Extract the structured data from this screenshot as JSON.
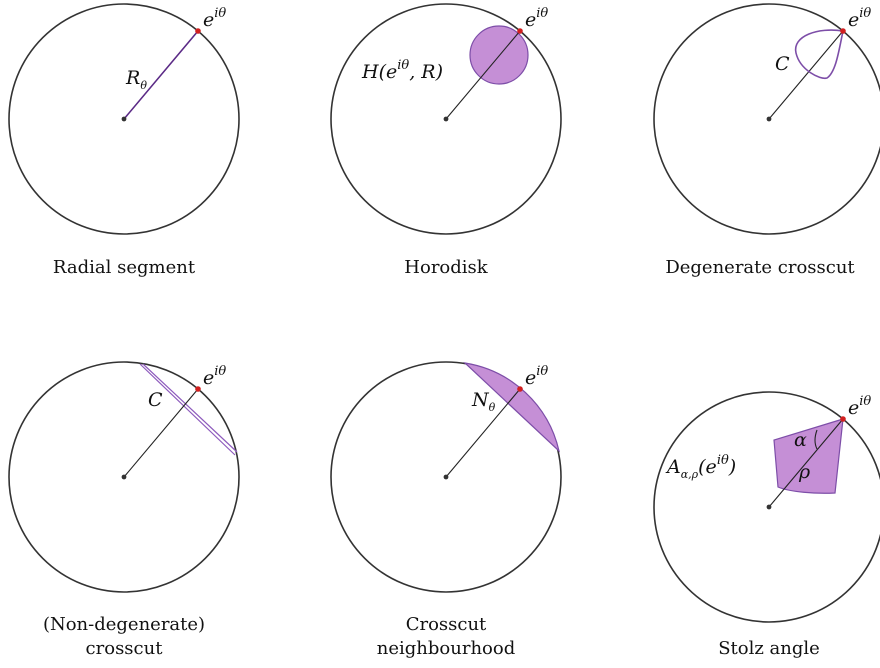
{
  "panels": [
    {
      "id": "radial-segment",
      "caption": [
        "Radial segment"
      ],
      "boundary_point": {
        "base": "e",
        "sup": "iθ"
      },
      "region_label": {
        "base": "R",
        "sub": "θ"
      }
    },
    {
      "id": "horodisk",
      "caption": [
        "Horodisk"
      ],
      "boundary_point": {
        "base": "e",
        "sup": "iθ"
      },
      "region_label": {
        "prefix": "H(",
        "base": "e",
        "sup": "iθ",
        "suffix": ", R)"
      }
    },
    {
      "id": "degenerate-crosscut",
      "caption": [
        "Degenerate crosscut"
      ],
      "boundary_point": {
        "base": "e",
        "sup": "iθ"
      },
      "region_label": {
        "base": "C"
      }
    },
    {
      "id": "non-degenerate-crosscut",
      "caption": [
        "(Non-degenerate)",
        "crosscut"
      ],
      "boundary_point": {
        "base": "e",
        "sup": "iθ"
      },
      "region_label": {
        "base": "C"
      }
    },
    {
      "id": "crosscut-neighbourhood",
      "caption": [
        "Crosscut",
        "neighbourhood"
      ],
      "boundary_point": {
        "base": "e",
        "sup": "iθ"
      },
      "region_label": {
        "base": "N",
        "sub": "θ"
      }
    },
    {
      "id": "stolz-angle",
      "caption": [
        "Stolz angle"
      ],
      "boundary_point": {
        "base": "e",
        "sup": "iθ"
      },
      "region_label": {
        "base": "A",
        "sub": "α,ρ",
        "mid": "(e",
        "sup": "iθ",
        "suffix": ")"
      },
      "angle_label": "α",
      "length_label": "ρ"
    }
  ],
  "colors": {
    "circle_stroke": "#333333",
    "region_fill": "#c58fd6",
    "region_stroke": "#7d4ea8",
    "boundary_point": "#d11f1f",
    "center_point": "#333333"
  }
}
